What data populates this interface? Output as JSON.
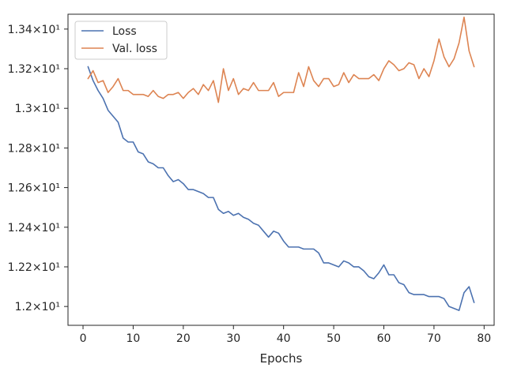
{
  "chart_data": {
    "type": "line",
    "xlabel": "Epochs",
    "ylabel": "",
    "xlim": [
      -3,
      82
    ],
    "ylim": [
      11.905,
      13.475
    ],
    "x_ticks": [
      0,
      10,
      20,
      30,
      40,
      50,
      60,
      70,
      80
    ],
    "x_tick_labels": [
      "0",
      "10",
      "20",
      "30",
      "40",
      "50",
      "60",
      "70",
      "80"
    ],
    "y_ticks": [
      12.0,
      12.2,
      12.4,
      12.6,
      12.8,
      13.0,
      13.2,
      13.4
    ],
    "y_tick_labels": [
      "1.2×10¹",
      "1.22×10¹",
      "1.24×10¹",
      "1.26×10¹",
      "1.28×10¹",
      "1.3×10¹",
      "1.32×10¹",
      "1.34×10¹"
    ],
    "legend_position": "top-left",
    "grid": false,
    "x": [
      1,
      2,
      3,
      4,
      5,
      6,
      7,
      8,
      9,
      10,
      11,
      12,
      13,
      14,
      15,
      16,
      17,
      18,
      19,
      20,
      21,
      22,
      23,
      24,
      25,
      26,
      27,
      28,
      29,
      30,
      31,
      32,
      33,
      34,
      35,
      36,
      37,
      38,
      39,
      40,
      41,
      42,
      43,
      44,
      45,
      46,
      47,
      48,
      49,
      50,
      51,
      52,
      53,
      54,
      55,
      56,
      57,
      58,
      59,
      60,
      61,
      62,
      63,
      64,
      65,
      66,
      67,
      68,
      69,
      70,
      71,
      72,
      73,
      74,
      75,
      76,
      77,
      78
    ],
    "series": [
      {
        "name": "Loss",
        "color": "#4c72b0",
        "values": [
          13.21,
          13.14,
          13.09,
          13.05,
          12.99,
          12.96,
          12.93,
          12.85,
          12.83,
          12.83,
          12.78,
          12.77,
          12.73,
          12.72,
          12.7,
          12.7,
          12.66,
          12.63,
          12.64,
          12.62,
          12.59,
          12.59,
          12.58,
          12.57,
          12.55,
          12.55,
          12.49,
          12.47,
          12.48,
          12.46,
          12.47,
          12.45,
          12.44,
          12.42,
          12.41,
          12.38,
          12.35,
          12.38,
          12.37,
          12.33,
          12.3,
          12.3,
          12.3,
          12.29,
          12.29,
          12.29,
          12.27,
          12.22,
          12.22,
          12.21,
          12.2,
          12.23,
          12.22,
          12.2,
          12.2,
          12.18,
          12.15,
          12.14,
          12.17,
          12.21,
          12.16,
          12.16,
          12.12,
          12.11,
          12.07,
          12.06,
          12.06,
          12.06,
          12.05,
          12.05,
          12.05,
          12.04,
          12.0,
          11.99,
          11.98,
          12.07,
          12.1,
          12.02
        ]
      },
      {
        "name": "Val. loss",
        "color": "#dd8452",
        "values": [
          13.15,
          13.19,
          13.13,
          13.14,
          13.08,
          13.11,
          13.15,
          13.09,
          13.09,
          13.07,
          13.07,
          13.07,
          13.06,
          13.09,
          13.06,
          13.05,
          13.07,
          13.07,
          13.08,
          13.05,
          13.08,
          13.1,
          13.07,
          13.12,
          13.09,
          13.14,
          13.03,
          13.2,
          13.09,
          13.15,
          13.07,
          13.1,
          13.09,
          13.13,
          13.09,
          13.09,
          13.09,
          13.13,
          13.06,
          13.08,
          13.08,
          13.08,
          13.18,
          13.11,
          13.21,
          13.14,
          13.11,
          13.15,
          13.15,
          13.11,
          13.12,
          13.18,
          13.13,
          13.17,
          13.15,
          13.15,
          13.15,
          13.17,
          13.14,
          13.2,
          13.24,
          13.22,
          13.19,
          13.2,
          13.23,
          13.22,
          13.15,
          13.2,
          13.16,
          13.24,
          13.35,
          13.26,
          13.21,
          13.25,
          13.33,
          13.46,
          13.29,
          13.21
        ]
      }
    ]
  }
}
